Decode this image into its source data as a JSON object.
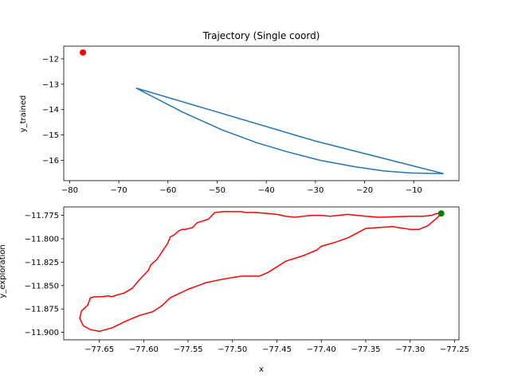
{
  "chart_data": [
    {
      "type": "line",
      "title": "Trajectory (Single coord)",
      "xlabel": "",
      "ylabel": "y_trained",
      "xlim": [
        -81.2,
        -0.8
      ],
      "ylim": [
        -16.8,
        -11.5
      ],
      "x_ticks": [
        -80,
        -70,
        -60,
        -50,
        -40,
        -30,
        -20,
        -10
      ],
      "y_ticks": [
        -12,
        -13,
        -14,
        -15,
        -16
      ],
      "grid": false,
      "series": [
        {
          "color": "#1f77b4",
          "x": [
            -66.5,
            -57.0,
            -49.0,
            -42.0,
            -36.0,
            -29.0,
            -22.0,
            -16.0,
            -10.5,
            -4.0,
            -30.0,
            -66.5
          ],
          "y": [
            -13.15,
            -14.1,
            -14.8,
            -15.3,
            -15.65,
            -16.0,
            -16.25,
            -16.42,
            -16.5,
            -16.52,
            -15.24,
            -13.15
          ]
        }
      ],
      "markers": [
        {
          "x": -77.3,
          "y": -11.75,
          "color": "#ff0000"
        }
      ]
    },
    {
      "type": "line",
      "title": "",
      "xlabel": "x",
      "ylabel": "y_exploration",
      "xlim": [
        -77.69,
        -77.245
      ],
      "ylim": [
        -11.908,
        -11.766
      ],
      "x_ticks": [
        -77.65,
        -77.6,
        -77.55,
        -77.5,
        -77.45,
        -77.4,
        -77.35,
        -77.3,
        -77.25
      ],
      "y_ticks": [
        -11.775,
        -11.8,
        -11.825,
        -11.85,
        -11.875,
        -11.9
      ],
      "grid": false,
      "series": [
        {
          "color": "#ff0000",
          "x": [
            -77.265,
            -77.27,
            -77.28,
            -77.29,
            -77.3,
            -77.32,
            -77.335,
            -77.35,
            -77.37,
            -77.385,
            -77.4,
            -77.405,
            -77.42,
            -77.44,
            -77.46,
            -77.47,
            -77.49,
            -77.51,
            -77.53,
            -77.55,
            -77.57,
            -77.58,
            -77.59,
            -77.605,
            -77.62,
            -77.635,
            -77.65,
            -77.66,
            -77.668,
            -77.672,
            -77.67,
            -77.663,
            -77.66,
            -77.655,
            -77.647,
            -77.64,
            -77.636,
            -77.63,
            -77.622,
            -77.613,
            -77.605,
            -77.595,
            -77.592,
            -77.585,
            -77.578,
            -77.573,
            -77.57,
            -77.566,
            -77.561,
            -77.557,
            -77.553,
            -77.549,
            -77.545,
            -77.54,
            -77.53,
            -77.527,
            -77.52,
            -77.51,
            -77.505,
            -77.5,
            -77.49,
            -77.485,
            -77.475,
            -77.46,
            -77.45,
            -77.44,
            -77.43,
            -77.41,
            -77.4,
            -77.39,
            -77.37,
            -77.35,
            -77.335,
            -77.3,
            -77.285,
            -77.276,
            -77.27,
            -77.265
          ],
          "y": [
            -11.773,
            -11.778,
            -11.786,
            -11.79,
            -11.79,
            -11.787,
            -11.788,
            -11.789,
            -11.799,
            -11.804,
            -11.808,
            -11.812,
            -11.818,
            -11.824,
            -11.836,
            -11.84,
            -11.84,
            -11.843,
            -11.847,
            -11.854,
            -11.863,
            -11.872,
            -11.878,
            -11.882,
            -11.888,
            -11.895,
            -11.899,
            -11.897,
            -11.893,
            -11.885,
            -11.877,
            -11.871,
            -11.863,
            -11.862,
            -11.862,
            -11.861,
            -11.862,
            -11.86,
            -11.858,
            -11.853,
            -11.844,
            -11.834,
            -11.828,
            -11.822,
            -11.812,
            -11.805,
            -11.798,
            -11.796,
            -11.792,
            -11.79,
            -11.79,
            -11.789,
            -11.788,
            -11.783,
            -11.78,
            -11.779,
            -11.772,
            -11.771,
            -11.771,
            -11.771,
            -11.771,
            -11.772,
            -11.772,
            -11.773,
            -11.774,
            -11.776,
            -11.777,
            -11.775,
            -11.775,
            -11.776,
            -11.774,
            -11.776,
            -11.777,
            -11.776,
            -11.776,
            -11.775,
            -11.773,
            -11.773
          ]
        }
      ],
      "markers": [
        {
          "x": -77.265,
          "y": -11.773,
          "color": "#008000"
        }
      ]
    }
  ]
}
